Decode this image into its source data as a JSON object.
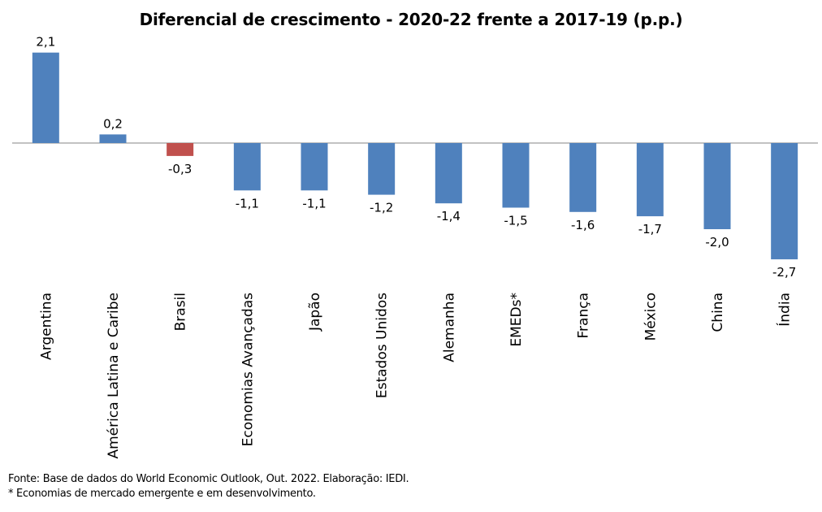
{
  "chart_data": {
    "type": "bar",
    "title": "Diferencial de crescimento - 2020-22 frente a 2017-19 (p.p.)",
    "xlabel": "",
    "ylabel": "",
    "categories": [
      "Argentina",
      "América Latina e Caribe",
      "Brasil",
      "Economias Avançadas",
      "Japão",
      "Estados Unidos",
      "Alemanha",
      "EMEDs*",
      "França",
      "México",
      "China",
      "Índia"
    ],
    "values": [
      2.1,
      0.2,
      -0.3,
      -1.1,
      -1.1,
      -1.2,
      -1.4,
      -1.5,
      -1.6,
      -1.7,
      -2.0,
      -2.7
    ],
    "value_labels": [
      "2,1",
      "0,2",
      "-0,3",
      "-1,1",
      "-1,1",
      "-1,2",
      "-1,4",
      "-1,5",
      "-1,6",
      "-1,7",
      "-2,0",
      "-2,7"
    ],
    "highlight_category": "Brasil",
    "colors": {
      "default": "#4F81BD",
      "highlight": "#C0504D",
      "axis": "#868686"
    },
    "ylim": [
      -2.7,
      2.1
    ],
    "grid": false,
    "legend": "none"
  },
  "footnotes": {
    "source": "Fonte: Base de dados do World Economic Outlook, Out. 2022.  Elaboração: IEDI.",
    "asterisk": "* Economias de mercado emergente e em desenvolvimento."
  }
}
